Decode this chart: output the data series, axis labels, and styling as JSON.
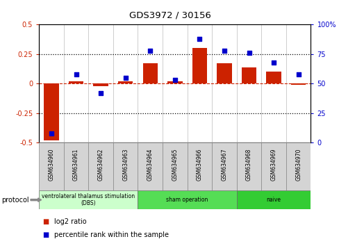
{
  "title": "GDS3972 / 30156",
  "samples": [
    "GSM634960",
    "GSM634961",
    "GSM634962",
    "GSM634963",
    "GSM634964",
    "GSM634965",
    "GSM634966",
    "GSM634967",
    "GSM634968",
    "GSM634969",
    "GSM634970"
  ],
  "log2_ratio": [
    -0.48,
    0.02,
    -0.02,
    0.02,
    0.17,
    0.02,
    0.3,
    0.17,
    0.14,
    0.1,
    -0.01
  ],
  "percentile_rank": [
    8,
    58,
    42,
    55,
    78,
    53,
    88,
    78,
    76,
    68,
    58
  ],
  "bar_color": "#cc2200",
  "dot_color": "#0000cc",
  "left_ylim": [
    -0.5,
    0.5
  ],
  "right_ylim": [
    0,
    100
  ],
  "left_yticks": [
    -0.5,
    -0.25,
    0.0,
    0.25,
    0.5
  ],
  "right_yticks": [
    0,
    25,
    50,
    75,
    100
  ],
  "left_yticklabels": [
    "-0.5",
    "-0.25",
    "0",
    "0.25",
    "0.5"
  ],
  "right_yticklabels": [
    "0",
    "25",
    "50",
    "75",
    "100%"
  ],
  "dotted_hlines": [
    -0.25,
    0.25
  ],
  "protocol_groups": [
    {
      "label": "ventrolateral thalamus stimulation\n(DBS)",
      "start": 0,
      "end": 3,
      "color": "#ccffcc"
    },
    {
      "label": "sham operation",
      "start": 4,
      "end": 7,
      "color": "#55dd55"
    },
    {
      "label": "naive",
      "start": 8,
      "end": 10,
      "color": "#33cc33"
    }
  ],
  "protocol_label": "protocol",
  "legend_items": [
    {
      "color": "#cc2200",
      "label": "log2 ratio"
    },
    {
      "color": "#0000cc",
      "label": "percentile rank within the sample"
    }
  ],
  "background_color": "#ffffff"
}
